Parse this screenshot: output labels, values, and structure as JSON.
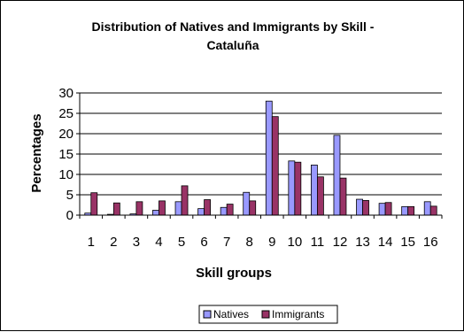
{
  "chart_data": {
    "type": "bar",
    "title": [
      "Distribution of Natives and Immigrants by Skill -",
      "Cataluña"
    ],
    "xlabel": "Skill groups",
    "ylabel": "Percentages",
    "ylim": [
      0,
      30
    ],
    "yticks": [
      "0",
      "5",
      "10",
      "15",
      "20",
      "25",
      "30"
    ],
    "categories": [
      "1",
      "2",
      "3",
      "4",
      "5",
      "6",
      "7",
      "8",
      "9",
      "10",
      "11",
      "12",
      "13",
      "14",
      "15",
      "16"
    ],
    "grid": true,
    "legend_position": "bottom",
    "series": [
      {
        "name": "Natives",
        "color": "#9999ff",
        "values": [
          0.5,
          0.2,
          0.3,
          1.2,
          3.3,
          1.6,
          1.9,
          5.6,
          28.0,
          13.3,
          12.3,
          19.6,
          3.9,
          2.9,
          2.1,
          3.3
        ]
      },
      {
        "name": "Immigrants",
        "color": "#993366",
        "values": [
          5.5,
          3.0,
          3.3,
          3.5,
          7.2,
          3.8,
          2.7,
          3.5,
          24.2,
          13.0,
          9.4,
          9.1,
          3.6,
          3.1,
          2.1,
          2.2
        ]
      }
    ]
  }
}
